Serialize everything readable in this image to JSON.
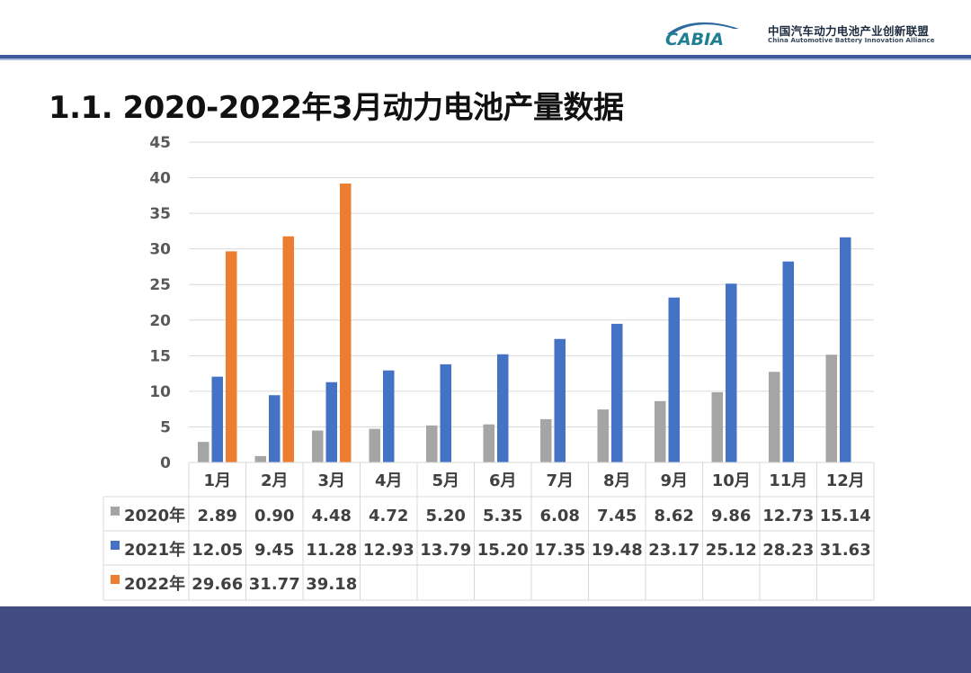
{
  "header": {
    "org_logo_text": "CABIA",
    "org_name_cn": "中国汽车动力电池产业创新联盟",
    "org_name_en": "China Automotive Battery Innovation Alliance"
  },
  "page": {
    "title": "1.1.  2020-2022年3月动力电池产量数据"
  },
  "chart_data": {
    "type": "bar",
    "title": "",
    "xlabel": "",
    "ylabel": "",
    "ylim": [
      0,
      45
    ],
    "yticks": [
      "0",
      "5",
      "10",
      "15",
      "20",
      "25",
      "30",
      "35",
      "40",
      "45"
    ],
    "ytick_values": [
      0,
      5,
      10,
      15,
      20,
      25,
      30,
      35,
      40,
      45
    ],
    "grid": true,
    "legend": "data-table",
    "categories": [
      "1月",
      "2月",
      "3月",
      "4月",
      "5月",
      "6月",
      "7月",
      "8月",
      "9月",
      "10月",
      "11月",
      "12月"
    ],
    "series": [
      {
        "name": "2020年",
        "color": "#a5a5a5",
        "values": [
          2.89,
          0.9,
          4.48,
          4.72,
          5.2,
          5.35,
          6.08,
          7.45,
          8.62,
          9.86,
          12.73,
          15.14
        ],
        "labels": [
          "2.89",
          "0.90",
          "4.48",
          "4.72",
          "5.20",
          "5.35",
          "6.08",
          "7.45",
          "8.62",
          "9.86",
          "12.73",
          "15.14"
        ]
      },
      {
        "name": "2021年",
        "color": "#4472c4",
        "values": [
          12.05,
          9.45,
          11.28,
          12.93,
          13.79,
          15.2,
          17.35,
          19.48,
          23.17,
          25.12,
          28.23,
          31.63
        ],
        "labels": [
          "12.05",
          "9.45",
          "11.28",
          "12.93",
          "13.79",
          "15.20",
          "17.35",
          "19.48",
          "23.17",
          "25.12",
          "28.23",
          "31.63"
        ]
      },
      {
        "name": "2022年",
        "color": "#ed7d31",
        "values": [
          29.66,
          31.77,
          39.18,
          null,
          null,
          null,
          null,
          null,
          null,
          null,
          null,
          null
        ],
        "labels": [
          "29.66",
          "31.77",
          "39.18",
          "",
          "",
          "",
          "",
          "",
          "",
          "",
          "",
          ""
        ]
      }
    ]
  },
  "colors": {
    "header_rule": "#3e5a9a",
    "footer_band": "#434c80",
    "logo_teal": "#1e7f93"
  }
}
